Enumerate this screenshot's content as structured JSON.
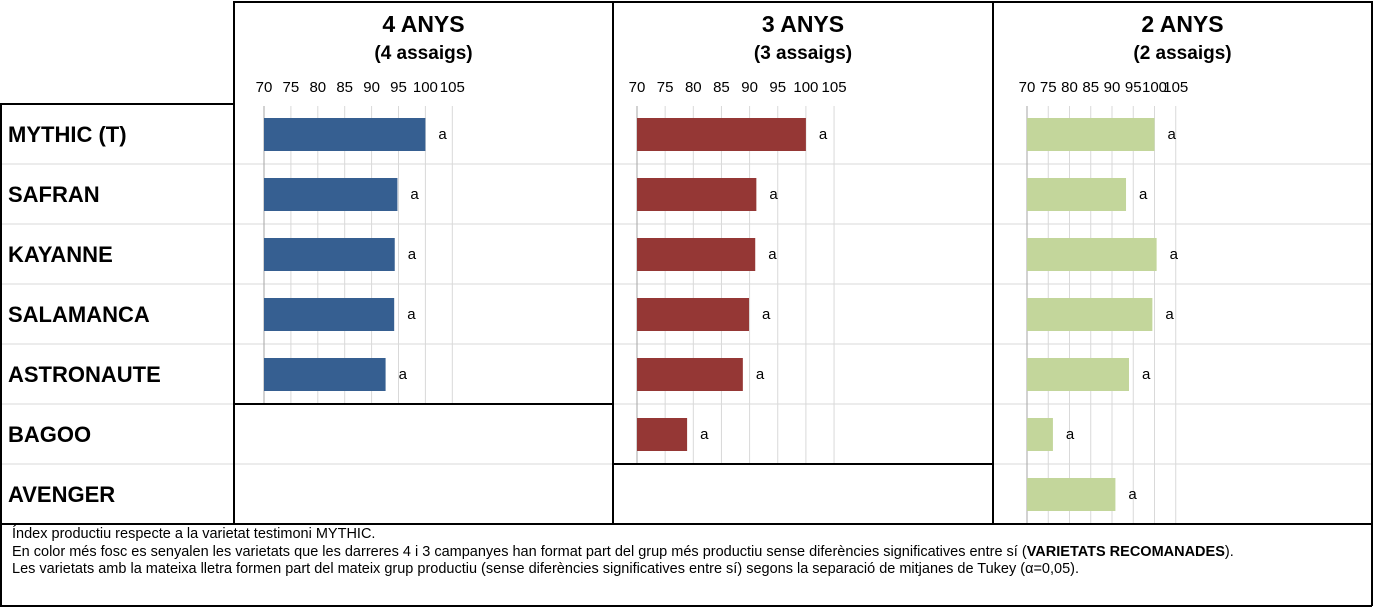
{
  "chart_data": [
    {
      "type": "bar",
      "title": "4 ANYS",
      "subtitle": "(4 assaigs)",
      "categories": [
        "MYTHIC (T)",
        "SAFRAN",
        "KAYANNE",
        "SALAMANCA",
        "ASTRONAUTE"
      ],
      "values": [
        100,
        94.8,
        94.3,
        94.2,
        92.6
      ],
      "labels": [
        "a",
        "a",
        "a",
        "a",
        "a"
      ],
      "xlim": [
        70,
        108
      ],
      "xticks": [
        70,
        75,
        80,
        85,
        90,
        95,
        100,
        105
      ],
      "color": "#365f91",
      "grid": true
    },
    {
      "type": "bar",
      "title": "3 ANYS",
      "subtitle": "(3 assaigs)",
      "categories": [
        "MYTHIC (T)",
        "SAFRAN",
        "KAYANNE",
        "SALAMANCA",
        "ASTRONAUTE",
        "BAGOO"
      ],
      "values": [
        100,
        91.2,
        91,
        89.9,
        88.8,
        78.9
      ],
      "labels": [
        "a",
        "a",
        "a",
        "a",
        "a",
        "a"
      ],
      "xlim": [
        70,
        108
      ],
      "xticks": [
        70,
        75,
        80,
        85,
        90,
        95,
        100,
        105
      ],
      "color": "#953735",
      "grid": true
    },
    {
      "type": "bar",
      "title": "2 ANYS",
      "subtitle": "(2 assaigs)",
      "categories": [
        "MYTHIC (T)",
        "SAFRAN",
        "KAYANNE",
        "SALAMANCA",
        "ASTRONAUTE",
        "BAGOO",
        "AVENGER"
      ],
      "values": [
        100,
        93.3,
        100.5,
        99.5,
        94,
        76.1,
        90.8
      ],
      "labels": [
        "a",
        "a",
        "a",
        "a",
        "a",
        "a",
        "a"
      ],
      "xlim": [
        70,
        108
      ],
      "xticks": [
        70,
        75,
        80,
        85,
        90,
        95,
        100,
        105
      ],
      "color": "#c3d69b",
      "grid": true
    }
  ],
  "rows": [
    "MYTHIC (T)",
    "SAFRAN",
    "KAYANNE",
    "SALAMANCA",
    "ASTRONAUTE",
    "BAGOO",
    "AVENGER"
  ],
  "footnote": {
    "line1": "Índex productiu respecte a la varietat testimoni MYTHIC.",
    "line2_text": "En color més fosc es senyalen les varietats que les darreres 4 i 3 campanyes han format part del grup més productiu sense diferències significatives entre sí (",
    "line2_bold": "VARIETATS RECOMANADES",
    "line2_end": ").",
    "line3": "Les varietats amb la mateixa lletra formen part del mateix grup productiu (sense diferències significatives entre sí) segons la separació de mitjanes de Tukey (α=0,05)."
  }
}
